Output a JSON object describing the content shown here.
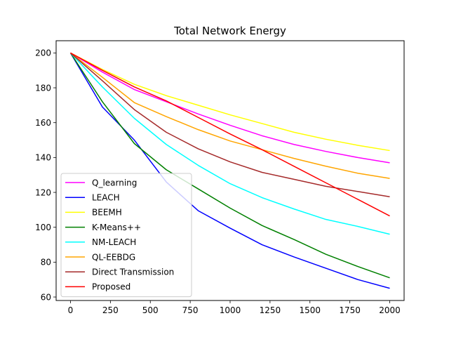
{
  "chart_data": {
    "type": "line",
    "title": "Total Network Energy",
    "xlabel": "",
    "ylabel": "",
    "xlim": [
      -90,
      2090
    ],
    "ylim": [
      58,
      207
    ],
    "xticks": [
      0,
      250,
      500,
      750,
      1000,
      1250,
      1500,
      1750,
      2000
    ],
    "xtick_labels": [
      "0",
      "250",
      "500",
      "750",
      "1000",
      "1250",
      "1500",
      "1750",
      "2000"
    ],
    "yticks": [
      60,
      80,
      100,
      120,
      140,
      160,
      180,
      200
    ],
    "ytick_labels": [
      "60",
      "80",
      "100",
      "120",
      "140",
      "160",
      "180",
      "200"
    ],
    "grid": false,
    "legend_position": "lower-left",
    "series": [
      {
        "name": "Q_learning",
        "color": "#ff00ff",
        "x": [
          0,
          200,
          400,
          600,
          800,
          1000,
          1200,
          1400,
          1600,
          1800,
          2000
        ],
        "y": [
          200,
          189,
          179,
          172,
          165,
          158.5,
          152.5,
          147.5,
          143.5,
          140,
          137
        ]
      },
      {
        "name": "LEACH",
        "color": "#0000ff",
        "x": [
          0,
          200,
          400,
          600,
          800,
          1000,
          1200,
          1400,
          1600,
          1800,
          2000
        ],
        "y": [
          200,
          169,
          150,
          126,
          109.5,
          99.5,
          90,
          83,
          76.5,
          70,
          65
        ]
      },
      {
        "name": "BEEMH",
        "color": "#ffff00",
        "x": [
          0,
          200,
          400,
          600,
          800,
          1000,
          1200,
          1400,
          1600,
          1800,
          2000
        ],
        "y": [
          200,
          190.5,
          182,
          175.5,
          170,
          164.5,
          159.5,
          154.5,
          150.5,
          147,
          144
        ]
      },
      {
        "name": "K-Means++",
        "color": "#008000",
        "x": [
          0,
          200,
          400,
          600,
          800,
          1000,
          1200,
          1400,
          1600,
          1800,
          2000
        ],
        "y": [
          200,
          172,
          148,
          133,
          122,
          111,
          101,
          93,
          84.5,
          77.5,
          71
        ]
      },
      {
        "name": "NM-LEACH",
        "color": "#00ffff",
        "x": [
          0,
          200,
          400,
          600,
          800,
          1000,
          1200,
          1400,
          1600,
          1800,
          2000
        ],
        "y": [
          200,
          180.5,
          162.5,
          147.5,
          135.5,
          125,
          117,
          110.5,
          104.5,
          100.5,
          96
        ]
      },
      {
        "name": "QL-EEBDG",
        "color": "#ffa500",
        "x": [
          0,
          200,
          400,
          600,
          800,
          1000,
          1200,
          1400,
          1600,
          1800,
          2000
        ],
        "y": [
          200,
          186,
          171.5,
          163.5,
          156,
          149.5,
          144.5,
          139.5,
          135,
          131,
          128
        ]
      },
      {
        "name": "Direct Transmission",
        "color": "#a52a2a",
        "x": [
          0,
          200,
          400,
          600,
          800,
          1000,
          1200,
          1400,
          1600,
          1800,
          2000
        ],
        "y": [
          200,
          184,
          167.5,
          154.5,
          145,
          137.5,
          131.5,
          127.5,
          123.5,
          120.5,
          117.5
        ]
      },
      {
        "name": "Proposed",
        "color": "#ff0000",
        "x": [
          0,
          200,
          400,
          600,
          800,
          1000,
          1200,
          1400,
          1600,
          1800,
          2000
        ],
        "y": [
          200,
          190,
          180.5,
          172.5,
          163,
          153.5,
          144.5,
          135,
          125.5,
          116,
          106.5
        ]
      }
    ]
  }
}
